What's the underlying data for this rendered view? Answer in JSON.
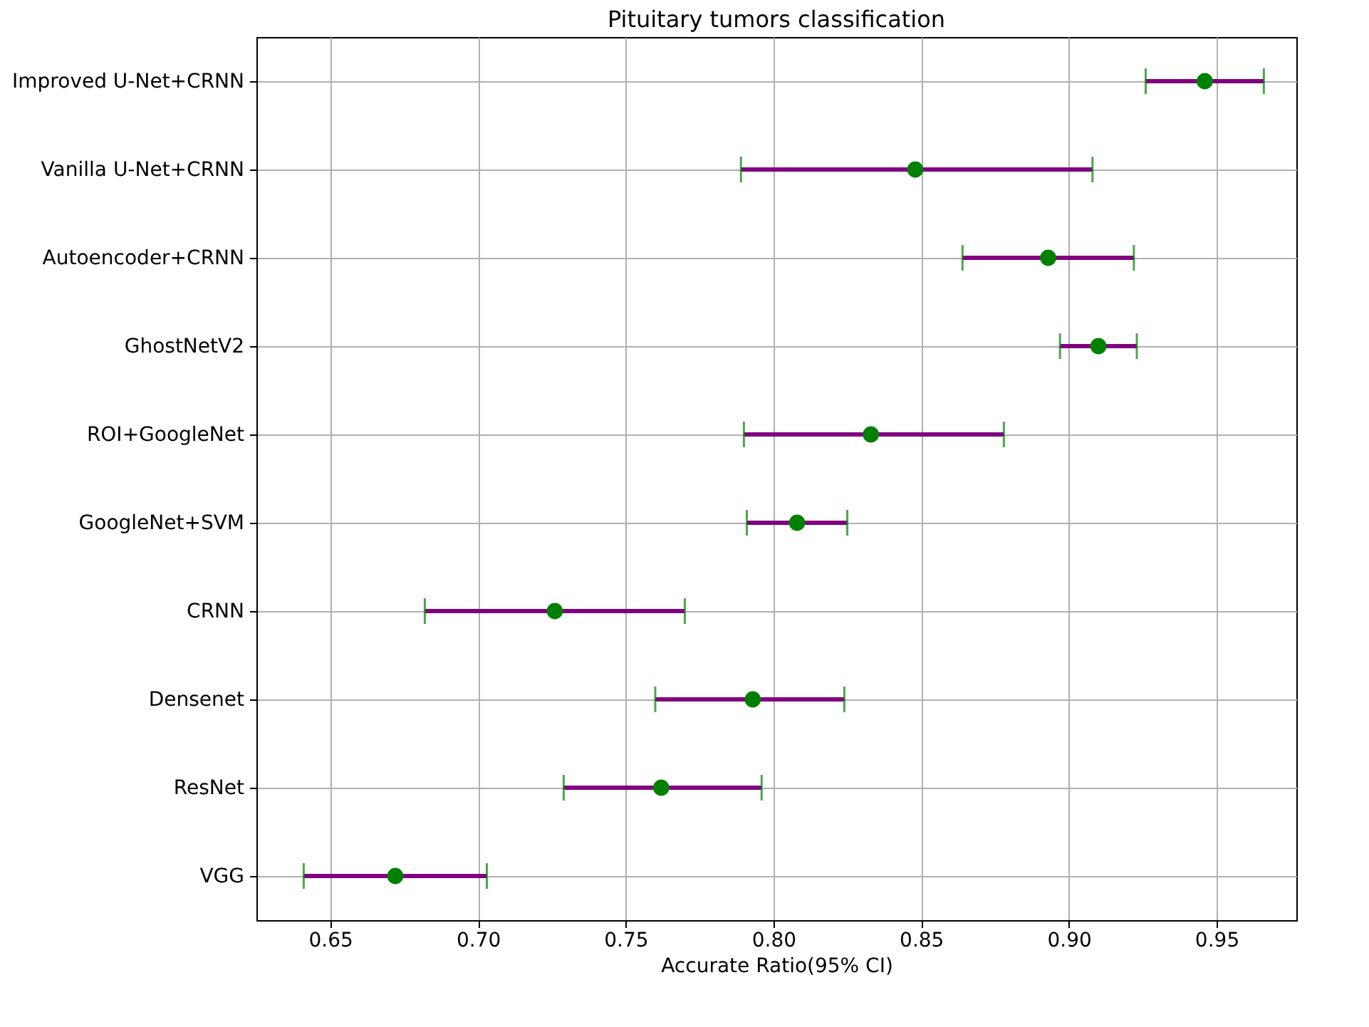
{
  "chart_data": {
    "type": "scatter",
    "orientation": "horizontal",
    "title": "Pituitary tumors classification",
    "xlabel": "Accurate Ratio(95% CI)",
    "categories": [
      "Improved U-Net+CRNN",
      "Vanilla U-Net+CRNN",
      "Autoencoder+CRNN",
      "GhostNetV2",
      "ROI+GoogleNet",
      "GoogleNet+SVM",
      "CRNN",
      "Densenet",
      "ResNet",
      "VGG"
    ],
    "series": [
      {
        "color": "#008000",
        "values": [
          0.946,
          0.848,
          0.893,
          0.91,
          0.833,
          0.808,
          0.726,
          0.793,
          0.762,
          0.672
        ],
        "errors": [
          [
            0.926,
            0.966
          ],
          [
            0.789,
            0.908
          ],
          [
            0.864,
            0.922
          ],
          [
            0.897,
            0.923
          ],
          [
            0.79,
            0.878
          ],
          [
            0.791,
            0.825
          ],
          [
            0.682,
            0.77
          ],
          [
            0.76,
            0.824
          ],
          [
            0.729,
            0.796
          ],
          [
            0.641,
            0.703
          ]
        ]
      }
    ],
    "xlim": [
      0.625,
      0.977
    ],
    "xticks": [
      0.65,
      {
        "value": 0.7,
        "label": "0.70"
      },
      0.75,
      {
        "value": 0.8,
        "label": "0.80"
      },
      0.85,
      {
        "value": 0.9,
        "label": "0.90"
      },
      0.95
    ],
    "grid": true,
    "marker": "circle"
  }
}
